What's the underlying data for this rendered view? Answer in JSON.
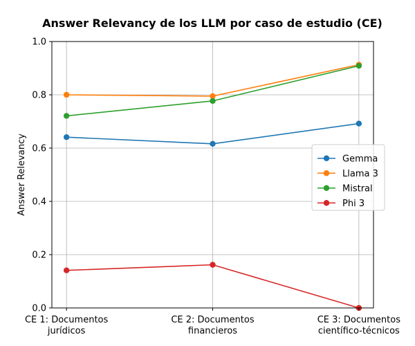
{
  "chart_data": {
    "type": "line",
    "title": "Answer Relevancy de los LLM por caso de estudio (CE)",
    "xlabel": "",
    "ylabel": "Answer Relevancy",
    "categories": [
      [
        "CE 1: Documentos",
        "jurídicos"
      ],
      [
        "CE 2: Documentos",
        "financieros"
      ],
      [
        "CE 3: Documentos",
        "científico-técnicos"
      ]
    ],
    "ylim": [
      0,
      1.0
    ],
    "yticks": [
      "0.0",
      "0.2",
      "0.4",
      "0.6",
      "0.8",
      "1.0"
    ],
    "grid": true,
    "legend_position": "center-right",
    "series": [
      {
        "name": "Gemma",
        "color": "#1f77b4",
        "values": [
          0.641,
          0.616,
          0.692
        ]
      },
      {
        "name": "Llama 3",
        "color": "#ff7f0e",
        "values": [
          0.8,
          0.795,
          0.913
        ]
      },
      {
        "name": "Mistral",
        "color": "#2ca02c",
        "values": [
          0.721,
          0.777,
          0.909
        ]
      },
      {
        "name": "Phi 3",
        "color": "#d62728",
        "values": [
          0.141,
          0.162,
          0.0
        ]
      }
    ]
  }
}
